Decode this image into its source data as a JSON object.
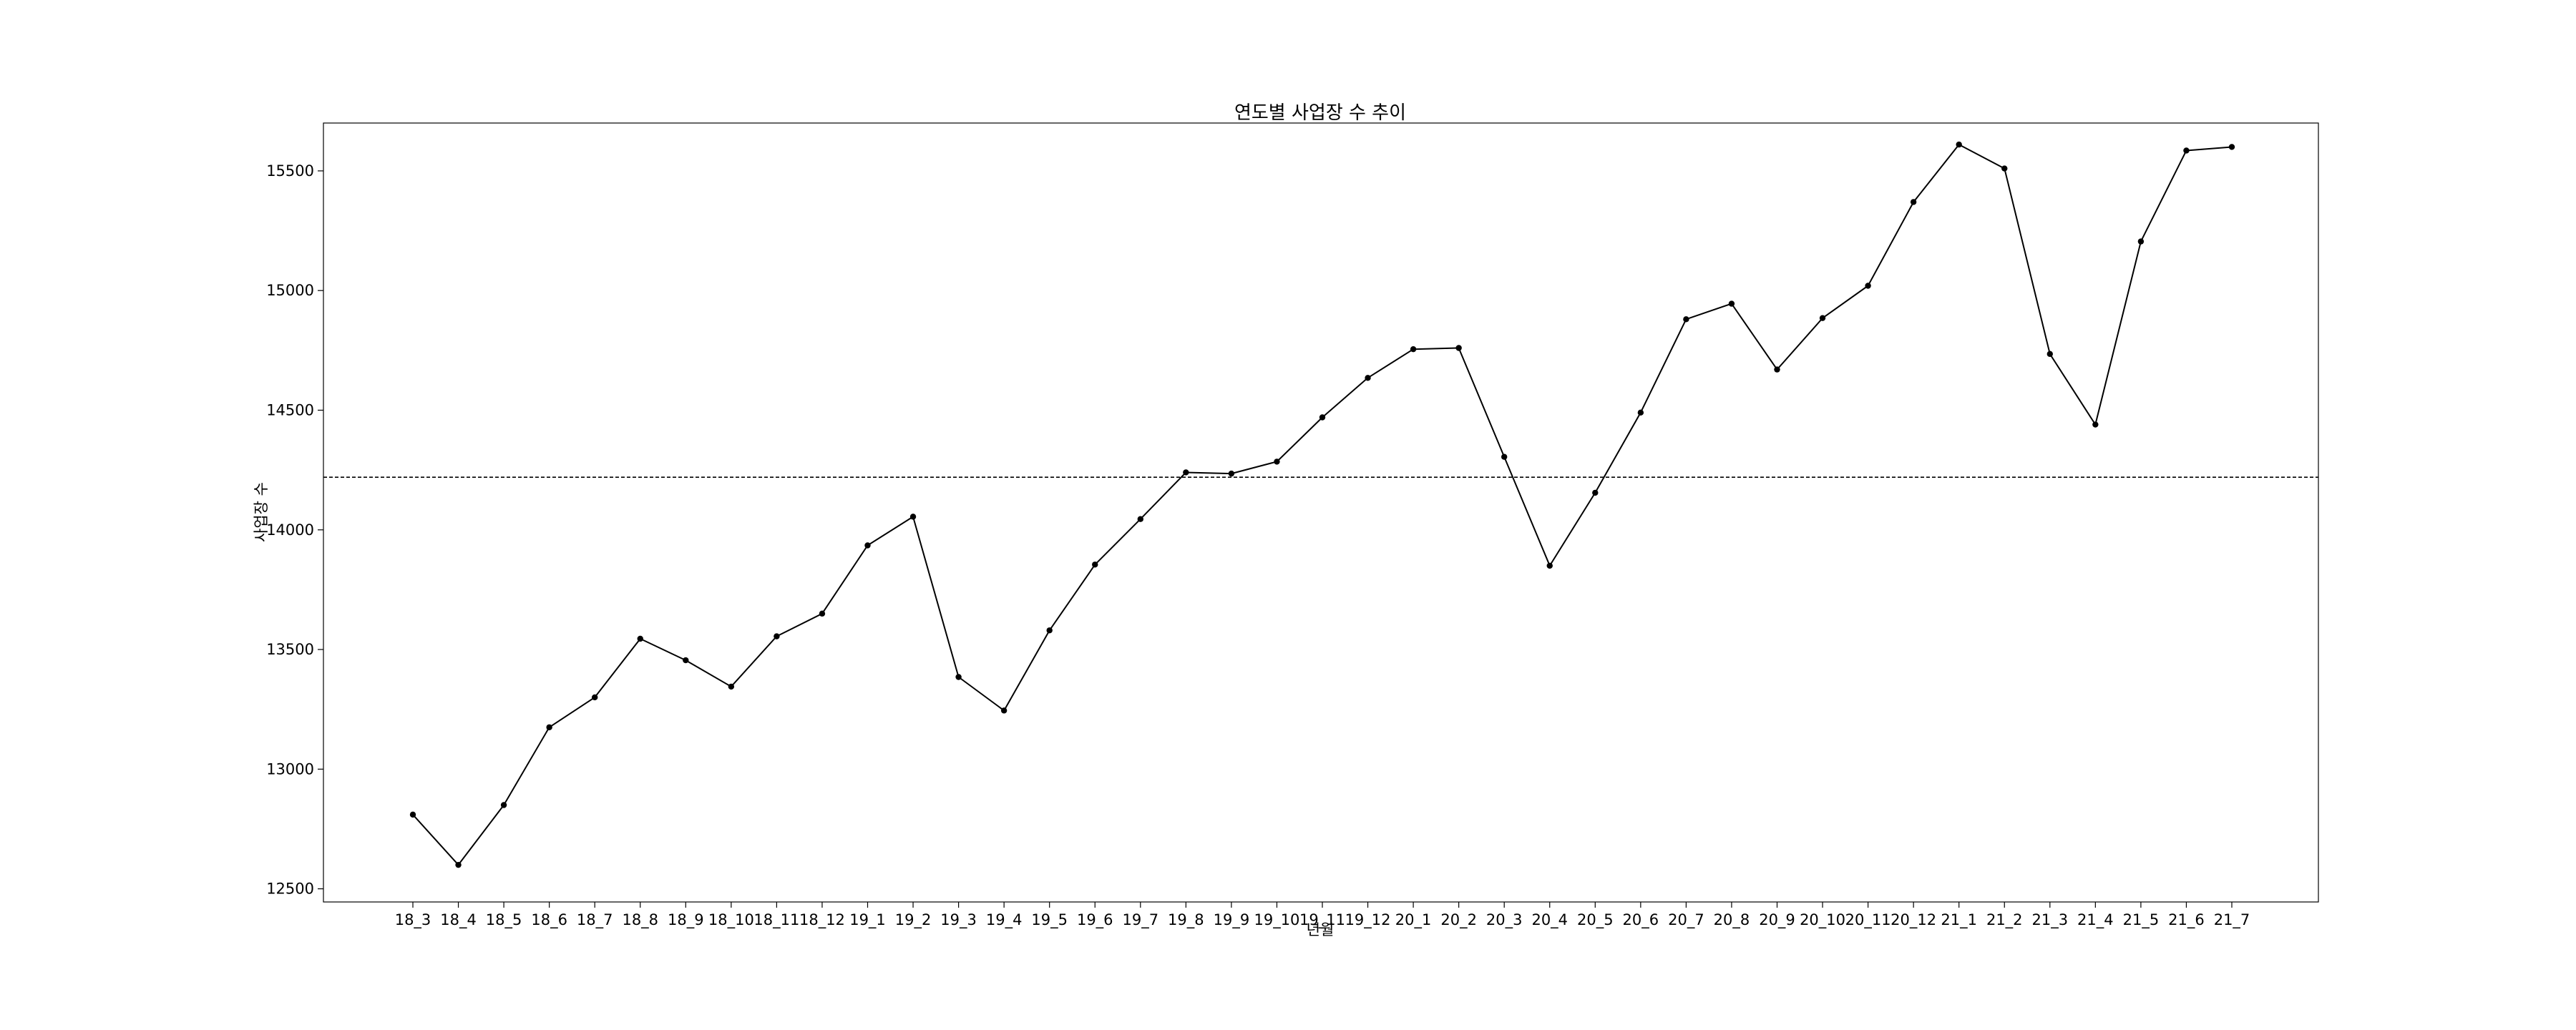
{
  "chart_data": {
    "type": "line",
    "title": "연도별 사업장 수 추이",
    "xlabel": "년월",
    "ylabel": "사업장 수",
    "categories": [
      "18_3",
      "18_4",
      "18_5",
      "18_6",
      "18_7",
      "18_8",
      "18_9",
      "18_10",
      "18_11",
      "18_12",
      "19_1",
      "19_2",
      "19_3",
      "19_4",
      "19_5",
      "19_6",
      "19_7",
      "19_8",
      "19_9",
      "19_10",
      "19_11",
      "19_12",
      "20_1",
      "20_2",
      "20_3",
      "20_4",
      "20_5",
      "20_6",
      "20_7",
      "20_8",
      "20_9",
      "20_10",
      "20_11",
      "20_12",
      "21_1",
      "21_2",
      "21_3",
      "21_4",
      "21_5",
      "21_6",
      "21_7"
    ],
    "series": [
      {
        "values": [
          12810,
          12600,
          12850,
          13175,
          13300,
          13545,
          13455,
          13345,
          13555,
          13650,
          13935,
          14055,
          13385,
          13245,
          13580,
          13855,
          14045,
          14240,
          14235,
          14285,
          14470,
          14635,
          14755,
          14760,
          14305,
          13850,
          14155,
          14490,
          14880,
          14945,
          14670,
          14885,
          15020,
          15370,
          15610,
          15510,
          14735,
          14440,
          15205,
          15585,
          15600
        ],
        "color": "#000000"
      }
    ],
    "reference_line": {
      "y": 14220,
      "style": "dashed",
      "color": "#000000"
    },
    "yticks": [
      12500,
      13000,
      13500,
      14000,
      14500,
      15000,
      15500
    ],
    "ylim": [
      12445,
      15700
    ],
    "grid": false,
    "legend": "none"
  }
}
